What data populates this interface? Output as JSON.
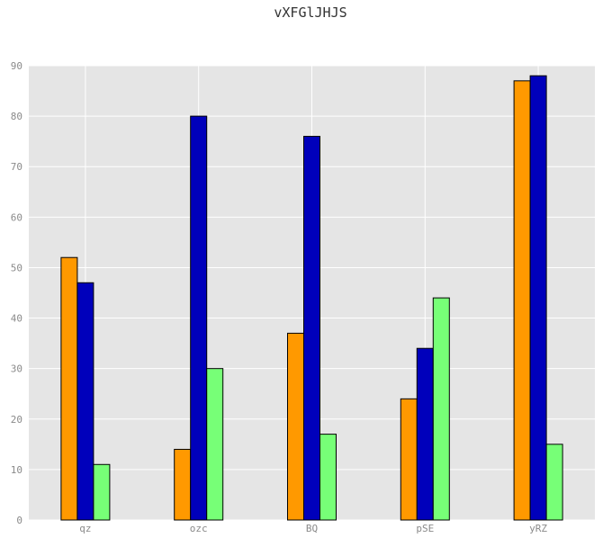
{
  "chart_data": {
    "type": "bar",
    "title": "vXFGlJHJS",
    "xlabel": "",
    "ylabel": "",
    "categories": [
      "qz",
      "ozc",
      "BQ",
      "pSE",
      "yRZ"
    ],
    "series": [
      {
        "color": "#ff9900",
        "values": [
          52,
          14,
          37,
          24,
          87
        ]
      },
      {
        "color": "#0000bb",
        "values": [
          47,
          80,
          76,
          34,
          88
        ]
      },
      {
        "color": "#77ff77",
        "values": [
          11,
          30,
          17,
          44,
          15
        ]
      }
    ],
    "ylim": [
      0,
      90
    ],
    "yticks": [
      0,
      10,
      20,
      30,
      40,
      50,
      60,
      70,
      80,
      90
    ],
    "grid": true,
    "background_color": "#e5e5e5",
    "grid_color": "#ffffff"
  }
}
